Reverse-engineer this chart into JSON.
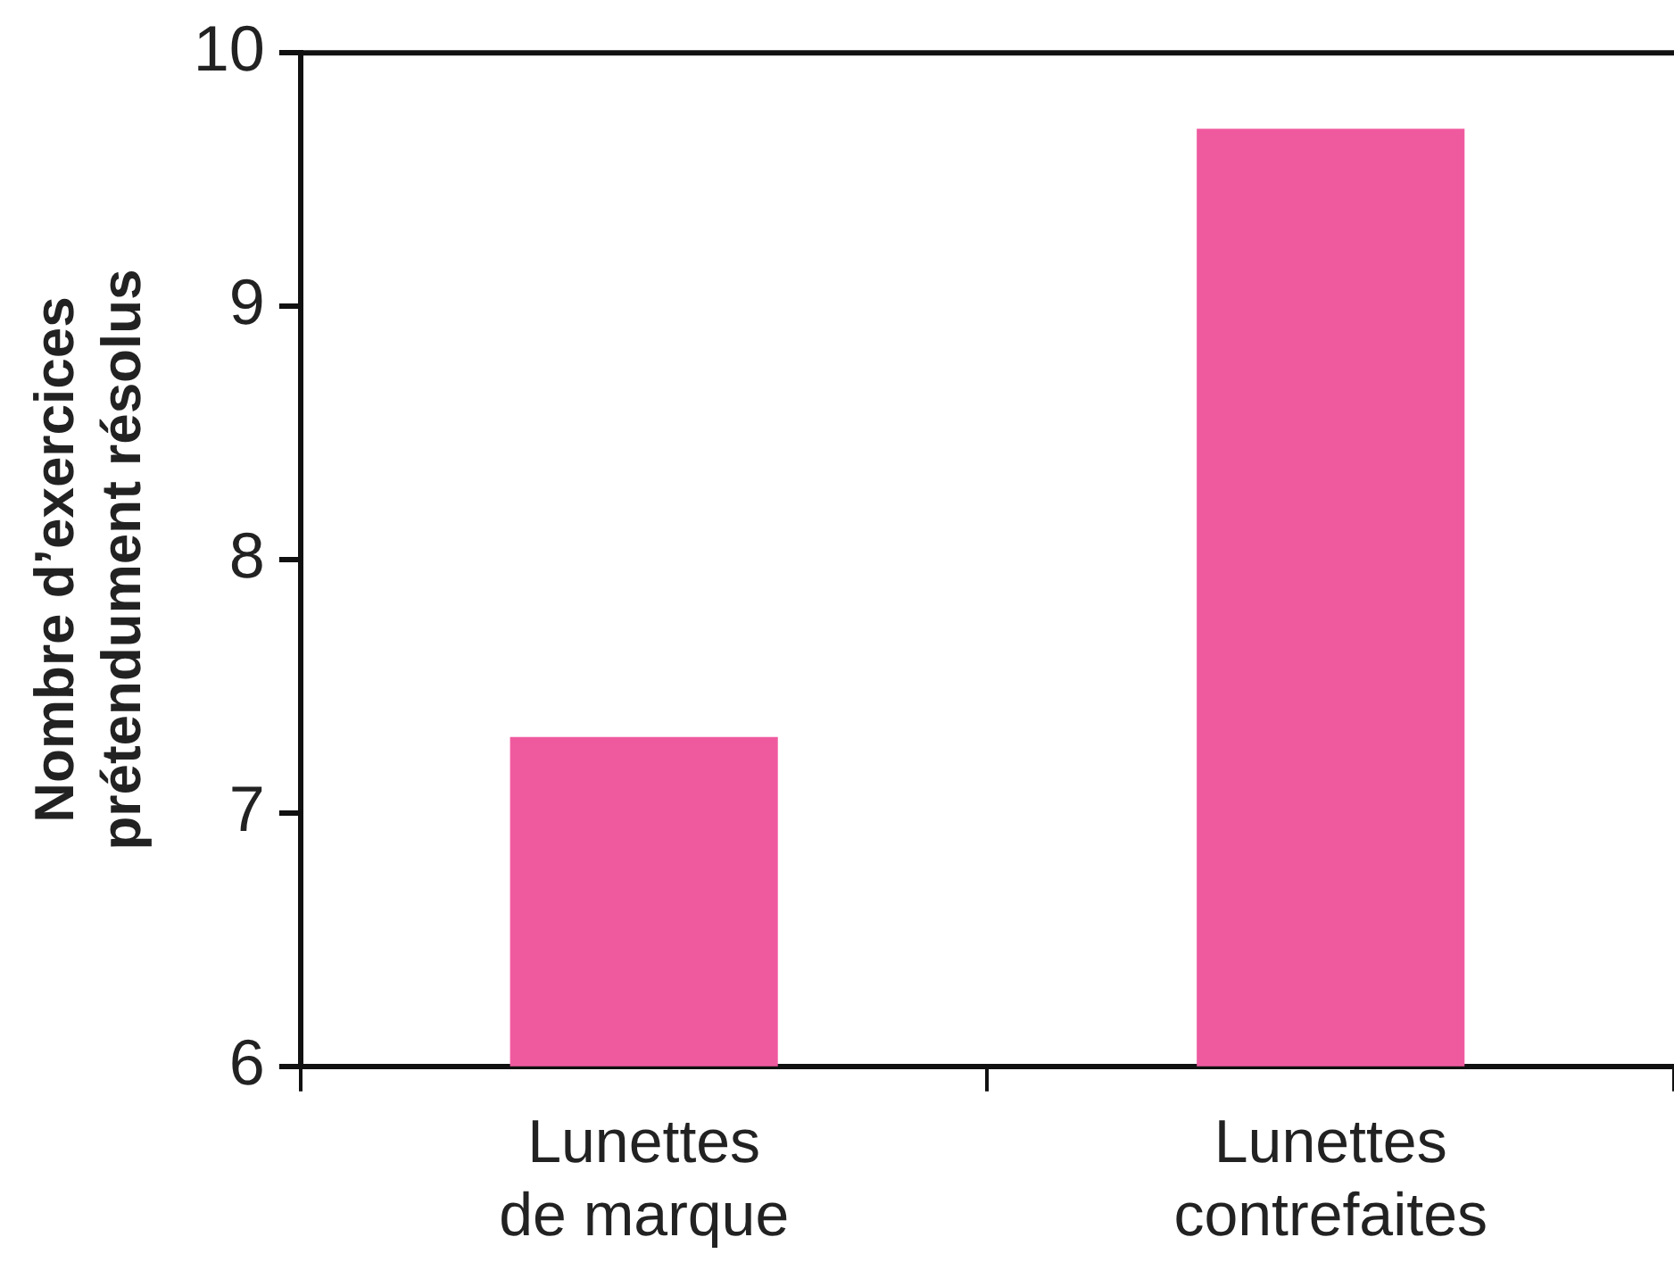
{
  "chart_data": {
    "type": "bar",
    "ylabel": "Nombre d’exercices\nprétendument résolus",
    "categories": [
      "Lunettes\nde marque",
      "Lunettes\ncontrefaites"
    ],
    "values": [
      7.3,
      9.7
    ],
    "color": "#ef5a9f",
    "ylim": [
      6,
      10
    ],
    "yticks": [
      6,
      7,
      8,
      9,
      10
    ],
    "grid": false,
    "legend": false
  }
}
